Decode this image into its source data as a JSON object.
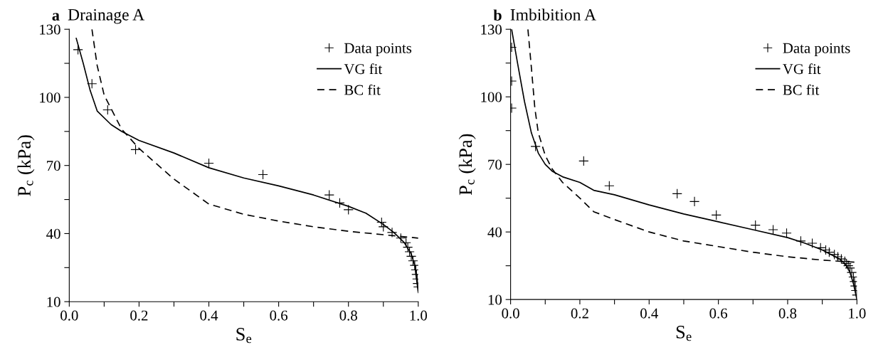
{
  "chart_data": [
    {
      "type": "line",
      "title": "a  Drainage A",
      "xlabel": "S$_{e}$",
      "ylabel": "P$_{c}$ (kPa)",
      "legend": "top right",
      "grid": false,
      "xlim": [
        0,
        1
      ],
      "ylim": [
        10,
        130
      ],
      "xticks": [
        {
          "value": 0,
          "label": "0.0"
        },
        {
          "value": 0.1,
          "label": null
        },
        {
          "value": 0.2,
          "label": "0.2"
        },
        {
          "value": 0.3,
          "label": null
        },
        {
          "value": 0.4,
          "label": "0.4"
        },
        {
          "value": 0.5,
          "label": null
        },
        {
          "value": 0.6,
          "label": "0.6"
        },
        {
          "value": 0.7,
          "label": null
        },
        {
          "value": 0.8,
          "label": "0.8"
        },
        {
          "value": 0.9,
          "label": null
        },
        {
          "value": 1,
          "label": "1.0"
        }
      ],
      "yticks": [
        10,
        {
          "value": 25,
          "label": null
        },
        40,
        {
          "value": 55,
          "label": null
        },
        70,
        {
          "value": 85,
          "label": null
        },
        100,
        {
          "value": 115,
          "label": null
        },
        130
      ],
      "series": [
        {
          "name": "Data points",
          "type": "scatter",
          "marker": "cross",
          "color": "#000000",
          "x": [
            0.025,
            0.065,
            0.11,
            0.19,
            0.4,
            0.555,
            0.745,
            0.775,
            0.8,
            0.895,
            0.9,
            0.925,
            0.95,
            0.965,
            0.97,
            0.975,
            0.98,
            0.985,
            0.99,
            0.993,
            0.995,
            0.997,
            0.998,
            1.0
          ],
          "values": [
            121,
            106,
            94.5,
            77,
            71,
            66,
            57,
            53.5,
            50.5,
            45,
            43,
            40.5,
            38,
            36,
            34,
            32,
            30,
            28,
            26,
            24,
            22,
            20,
            18,
            16.5
          ]
        },
        {
          "name": "VG fit",
          "line_style": "solid",
          "color": "#000000",
          "x": [
            0.02,
            0.04,
            0.06,
            0.08,
            0.12,
            0.15,
            0.2,
            0.3,
            0.4,
            0.5,
            0.6,
            0.7,
            0.8,
            0.85,
            0.9,
            0.93,
            0.96,
            0.98,
            0.99,
            1.0
          ],
          "values": [
            126,
            115,
            103,
            94,
            88,
            85,
            81,
            75.5,
            69,
            64.5,
            61,
            57,
            52,
            49,
            44,
            40.5,
            36,
            31,
            26,
            14
          ]
        },
        {
          "name": "BC fit",
          "line_style": "dashed",
          "color": "#000000",
          "x": [
            0.065,
            0.08,
            0.1,
            0.15,
            0.2,
            0.3,
            0.4,
            0.5,
            0.6,
            0.7,
            0.8,
            0.9,
            1.0
          ],
          "values": [
            130,
            114,
            101,
            86,
            77.5,
            64,
            53,
            48.5,
            45.5,
            43,
            41,
            39.5,
            38
          ]
        }
      ]
    },
    {
      "type": "line",
      "title": "b  Imbibition A",
      "xlabel": "S$_{e}$",
      "ylabel": "P$_{c}$ (kPa)",
      "legend": "top right",
      "grid": false,
      "xlim": [
        0,
        1
      ],
      "ylim": [
        10,
        130
      ],
      "xticks": [
        {
          "value": 0,
          "label": "0.0"
        },
        {
          "value": 0.1,
          "label": null
        },
        {
          "value": 0.2,
          "label": "0.2"
        },
        {
          "value": 0.3,
          "label": null
        },
        {
          "value": 0.4,
          "label": "0.4"
        },
        {
          "value": 0.5,
          "label": null
        },
        {
          "value": 0.6,
          "label": "0.6"
        },
        {
          "value": 0.7,
          "label": null
        },
        {
          "value": 0.8,
          "label": "0.8"
        },
        {
          "value": 0.9,
          "label": null
        },
        {
          "value": 1,
          "label": "1.0"
        }
      ],
      "yticks": [
        10,
        {
          "value": 25,
          "label": null
        },
        40,
        {
          "value": 55,
          "label": null
        },
        70,
        {
          "value": 85,
          "label": null
        },
        100,
        {
          "value": 115,
          "label": null
        },
        130
      ],
      "series": [
        {
          "name": "Data points",
          "type": "scatter",
          "marker": "cross",
          "color": "#000000",
          "x": [
            0.003,
            0.003,
            0.003,
            0.072,
            0.211,
            0.285,
            0.481,
            0.531,
            0.594,
            0.707,
            0.758,
            0.797,
            0.838,
            0.871,
            0.895,
            0.91,
            0.92,
            0.935,
            0.945,
            0.955,
            0.965,
            0.97,
            0.975,
            0.98,
            0.985,
            0.99,
            0.993,
            0.995,
            0.997,
            1.0
          ],
          "values": [
            122,
            107,
            95,
            78,
            71.5,
            60.5,
            57,
            53.5,
            47.5,
            43,
            41,
            39.5,
            36,
            35,
            33,
            32,
            31,
            30,
            29,
            28,
            27,
            26,
            25,
            24,
            22,
            20,
            18,
            16,
            14,
            12
          ]
        },
        {
          "name": "VG fit",
          "line_style": "solid",
          "color": "#000000",
          "x": [
            0.003,
            0.02,
            0.04,
            0.06,
            0.08,
            0.1,
            0.12,
            0.15,
            0.2,
            0.24,
            0.3,
            0.4,
            0.5,
            0.6,
            0.7,
            0.8,
            0.85,
            0.9,
            0.95,
            0.97,
            0.98,
            0.99,
            1.0
          ],
          "values": [
            130,
            115,
            98,
            84,
            75,
            70,
            67,
            64.5,
            62,
            58.5,
            56.5,
            52,
            48,
            44.5,
            41,
            37.5,
            35,
            32,
            28,
            25,
            22,
            17,
            10
          ]
        },
        {
          "name": "BC fit",
          "line_style": "dashed",
          "color": "#000000",
          "x": [
            0.05,
            0.06,
            0.07,
            0.08,
            0.1,
            0.12,
            0.15,
            0.2,
            0.24,
            0.3,
            0.4,
            0.5,
            0.6,
            0.7,
            0.8,
            0.9,
            1.0
          ],
          "values": [
            130,
            113,
            95,
            84,
            74,
            68,
            62,
            55,
            49,
            45.5,
            40,
            36,
            33.5,
            31,
            29,
            27.5,
            26.5
          ]
        }
      ]
    }
  ]
}
